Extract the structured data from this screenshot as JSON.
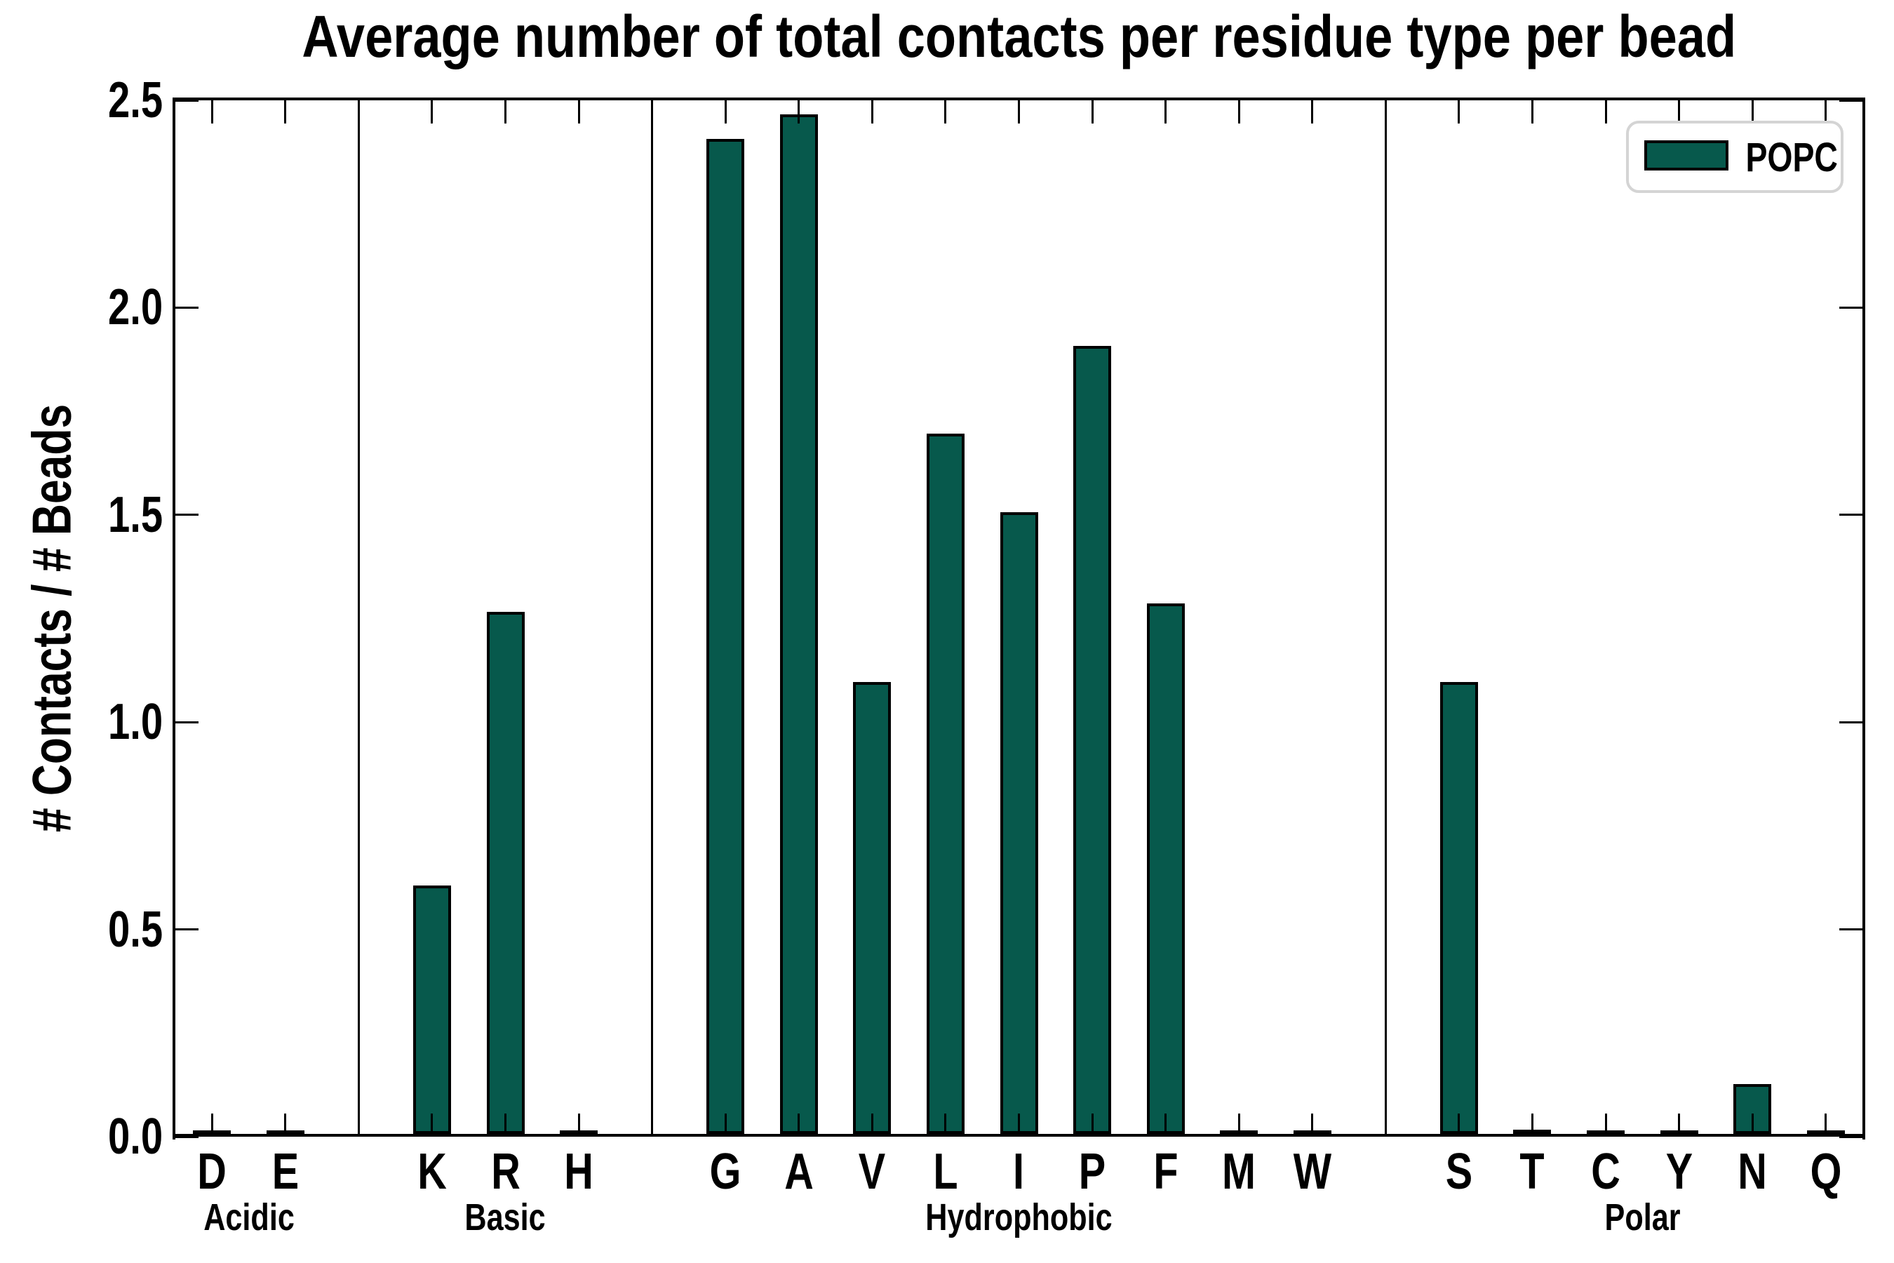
{
  "figure": {
    "title": "Average number of total contacts per residue type per bead",
    "background_color": "#ffffff",
    "axis_color": "#000000"
  },
  "legend": {
    "label": "POPC",
    "swatch_color": "#07594c",
    "border_color": "#d4d4d4",
    "position": "upper right"
  },
  "chart_data": {
    "type": "bar",
    "title": "Average number of total contacts per residue type per bead",
    "xlabel": "",
    "ylabel": "# Contacts / # Beads",
    "ylim": [
      0,
      2.5
    ],
    "ytick_labels": [
      "0.0",
      "0.5",
      "1.0",
      "1.5",
      "2.0",
      "2.5"
    ],
    "ytick_values": [
      0.0,
      0.5,
      1.0,
      1.5,
      2.0,
      2.5
    ],
    "grid": false,
    "legend_position": "upper right",
    "bar_color": "#07594c",
    "bar_edge_color": "#000000",
    "series_name": "POPC",
    "categories": [
      "D",
      "E",
      "K",
      "R",
      "H",
      "G",
      "A",
      "V",
      "L",
      "I",
      "P",
      "F",
      "M",
      "W",
      "S",
      "T",
      "C",
      "Y",
      "N",
      "Q"
    ],
    "values": [
      0.005,
      0.005,
      0.6,
      1.26,
      0.005,
      2.4,
      2.46,
      1.09,
      1.69,
      1.5,
      1.9,
      1.28,
      0.005,
      0.005,
      1.09,
      0.01,
      0.005,
      0.005,
      0.12,
      0.005
    ],
    "groups": [
      {
        "label": "Acidic",
        "residues": [
          "D",
          "E"
        ],
        "values": [
          0.005,
          0.005
        ]
      },
      {
        "label": "Basic",
        "residues": [
          "K",
          "R",
          "H"
        ],
        "values": [
          0.6,
          1.26,
          0.005
        ]
      },
      {
        "label": "Hydrophobic",
        "residues": [
          "G",
          "A",
          "V",
          "L",
          "I",
          "P",
          "F",
          "M",
          "W"
        ],
        "values": [
          2.4,
          2.46,
          1.09,
          1.69,
          1.5,
          1.9,
          1.28,
          0.005,
          0.005
        ]
      },
      {
        "label": "Polar",
        "residues": [
          "S",
          "T",
          "C",
          "Y",
          "N",
          "Q"
        ],
        "values": [
          1.09,
          0.01,
          0.005,
          0.005,
          0.12,
          0.005
        ]
      }
    ]
  }
}
